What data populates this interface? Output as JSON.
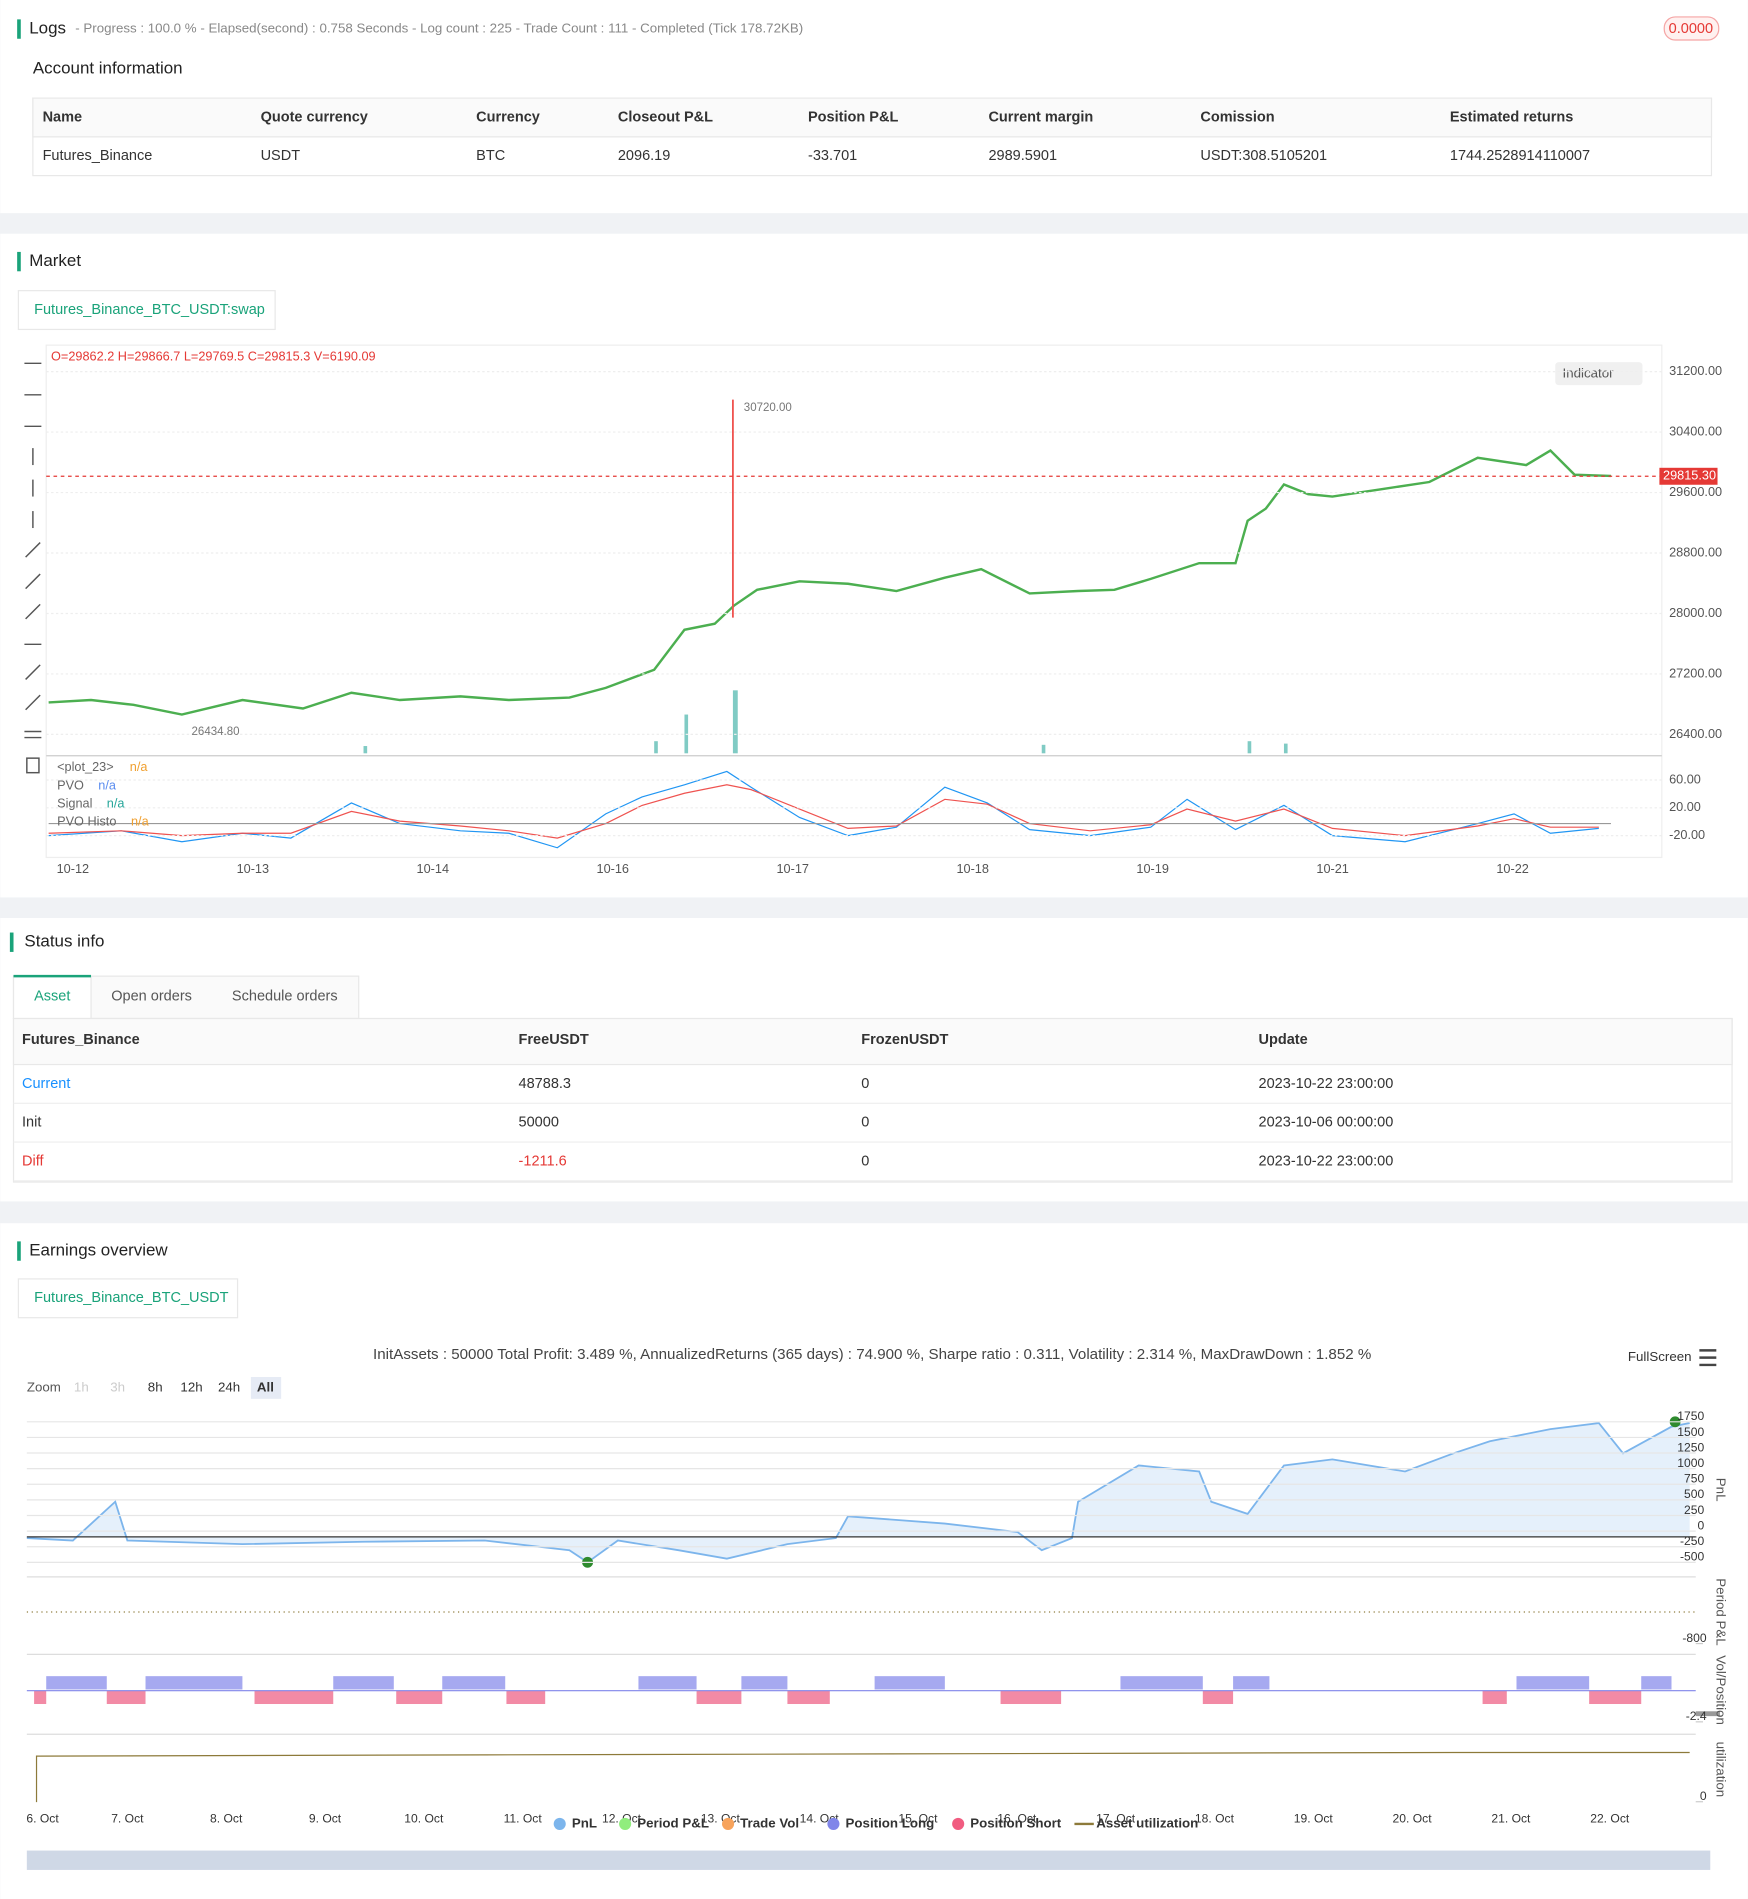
{
  "logs": {
    "title": "Logs",
    "status": "- Progress : 100.0 % - Elapsed(second) : 0.758 Seconds - Log count : 225 - Trade Count : 111 - Completed (Tick 178.72KB)",
    "badge": "0.0000"
  },
  "account": {
    "title": "Account information",
    "columns": [
      "Name",
      "Quote currency",
      "Currency",
      "Closeout P&L",
      "Position P&L",
      "Current margin",
      "Comission",
      "Estimated returns"
    ],
    "rows": [
      [
        "Futures_Binance",
        "USDT",
        "BTC",
        "2096.19",
        "-33.701",
        "2989.5901",
        "USDT:308.5105201",
        "1744.2528914110007"
      ]
    ]
  },
  "market": {
    "title": "Market",
    "tab": "Futures_Binance_BTC_USDT:swap",
    "indicator_button": "Indicator"
  },
  "status": {
    "title": "Status info",
    "tabs": [
      "Asset",
      "Open orders",
      "Schedule orders"
    ],
    "columns": [
      "Futures_Binance",
      "FreeUSDT",
      "FrozenUSDT",
      "Update"
    ],
    "rows": [
      [
        "Current",
        "48788.3",
        "0",
        "2023-10-22 23:00:00"
      ],
      [
        "Init",
        "50000",
        "0",
        "2023-10-06 00:00:00"
      ],
      [
        "Diff",
        "-1211.6",
        "0",
        "2023-10-22 23:00:00"
      ]
    ]
  },
  "earnings": {
    "title": "Earnings overview",
    "tab": "Futures_Binance_BTC_USDT"
  },
  "chart_data": [
    {
      "type": "candlestick",
      "ohlc_text": "O=29862.2 H=29866.7 L=29769.5 C=29815.3 V=6190.09",
      "ylim": [
        26150,
        31550
      ],
      "yticks": [
        {
          "value": 31200,
          "label": "31200.00"
        },
        {
          "value": 30400,
          "label": "30400.00"
        },
        {
          "value": 29600,
          "label": "29600.00"
        },
        {
          "value": 28800,
          "label": "28800.00"
        },
        {
          "value": 28000,
          "label": "28000.00"
        },
        {
          "value": 27200,
          "label": "27200.00"
        },
        {
          "value": 26400,
          "label": "26400.00"
        }
      ],
      "last_price": {
        "value": 29815.3,
        "label": "29815.30"
      },
      "high_marker": {
        "value": 30720,
        "label": "30720.00"
      },
      "low_marker": {
        "value": 26434.8,
        "label": "26434.80"
      },
      "xticks": [
        "10-12",
        "10-13",
        "10-14",
        "10-16",
        "10-17",
        "10-18",
        "10-19",
        "10-21",
        "10-22"
      ],
      "grid": true,
      "indicator": {
        "ylim": [
          -48,
          88
        ],
        "yticks": [
          {
            "value": 60,
            "label": "60.00"
          },
          {
            "value": 20,
            "label": "20.00"
          },
          {
            "value": -20,
            "label": "-20.00"
          }
        ],
        "legend": [
          {
            "name": "<plot_23>",
            "value": "n/a",
            "color": "#f0a030"
          },
          {
            "name": "PVO",
            "value": "n/a",
            "color": "#5b8def"
          },
          {
            "name": "Signal",
            "value": "n/a",
            "color": "#26a69a"
          },
          {
            "name": "PVO Histo",
            "value": "n/a",
            "color": "#f0a030"
          }
        ]
      }
    },
    {
      "type": "line",
      "title": "InitAssets : 50000 Total Profit: 3.489 %, AnnualizedReturns (365 days) : 74.900 %, Sharpe ratio : 0.311, Volatility : 2.314 %, MaxDrawDown : 1.852 %",
      "fullscreen": "FullScreen",
      "zoom_label": "Zoom",
      "zoom_buttons": [
        "1h",
        "3h",
        "8h",
        "12h",
        "24h",
        "All"
      ],
      "y_title": "PnL",
      "ylim": [
        -616,
        1866
      ],
      "yticks": [
        1750,
        1500,
        1250,
        1000,
        750,
        500,
        250,
        0,
        -250,
        -500
      ],
      "panes": [
        {
          "title": "Period P&L",
          "ylim": [
            -900,
            1100
          ],
          "yticks": [
            -800
          ]
        },
        {
          "title": "Vol/Position",
          "ylim": [
            -2.7,
            2.7
          ],
          "yticks": [
            -2.4
          ]
        },
        {
          "title": "utilization",
          "ylim": [
            -0.05,
            1.2
          ],
          "yticks": [
            0
          ]
        }
      ],
      "xticks": [
        "6. Oct",
        "7. Oct",
        "8. Oct",
        "9. Oct",
        "10. Oct",
        "11. Oct",
        "12. Oct",
        "13. Oct",
        "14. Oct",
        "15. Oct",
        "16. Oct",
        "17. Oct",
        "18. Oct",
        "19. Oct",
        "20. Oct",
        "21. Oct",
        "22. Oct"
      ],
      "series": [
        {
          "name": "PnL",
          "color": "#7cb5ec"
        },
        {
          "name": "Period P&L",
          "color": "#90ed7d"
        },
        {
          "name": "Trade Vol",
          "color": "#f7a35c"
        },
        {
          "name": "Position Long",
          "color": "#8085e9"
        },
        {
          "name": "Position Short",
          "color": "#f15c80"
        },
        {
          "name": "Asset utilization",
          "color": "#8d7a3a"
        }
      ]
    }
  ]
}
